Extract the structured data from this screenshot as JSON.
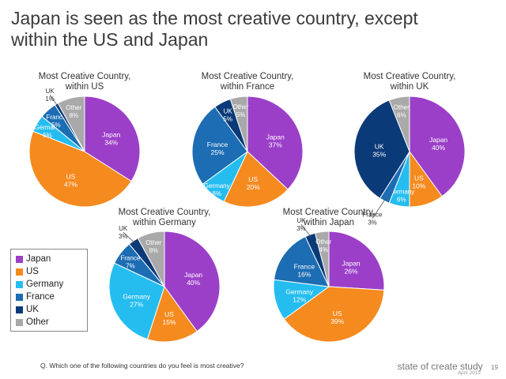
{
  "title": {
    "line1": "Japan is seen as the most creative country, except",
    "line2": "within the US and Japan"
  },
  "colors": {
    "Japan": "#9b3fc8",
    "US": "#f58a1f",
    "Germany": "#25bdf0",
    "France": "#1c6db3",
    "UK": "#0b3a78",
    "Other": "#a9a9a9"
  },
  "legend": {
    "items": [
      {
        "label": "Japan",
        "key": "Japan"
      },
      {
        "label": "US",
        "key": "US"
      },
      {
        "label": "Germany",
        "key": "Germany"
      },
      {
        "label": "France",
        "key": "France"
      },
      {
        "label": "UK",
        "key": "UK"
      },
      {
        "label": "Other",
        "key": "Other"
      }
    ]
  },
  "chart_data": [
    {
      "type": "pie",
      "title": [
        "Most Creative Country,",
        "within US"
      ],
      "slices": [
        {
          "label": "Japan",
          "value": 34
        },
        {
          "label": "US",
          "value": 47
        },
        {
          "label": "Germany",
          "value": 5
        },
        {
          "label": "France",
          "value": 5
        },
        {
          "label": "UK",
          "value": 1
        },
        {
          "label": "Other",
          "value": 8
        }
      ]
    },
    {
      "type": "pie",
      "title": [
        "Most Creative Country,",
        "within France"
      ],
      "slices": [
        {
          "label": "Japan",
          "value": 37
        },
        {
          "label": "US",
          "value": 20
        },
        {
          "label": "Germany",
          "value": 8
        },
        {
          "label": "France",
          "value": 25
        },
        {
          "label": "UK",
          "value": 5
        },
        {
          "label": "Other",
          "value": 5
        }
      ]
    },
    {
      "type": "pie",
      "title": [
        "Most Creative Country,",
        "within UK"
      ],
      "slices": [
        {
          "label": "Japan",
          "value": 40
        },
        {
          "label": "US",
          "value": 10
        },
        {
          "label": "Germany",
          "value": 6
        },
        {
          "label": "France",
          "value": 3
        },
        {
          "label": "UK",
          "value": 35
        },
        {
          "label": "Other",
          "value": 6
        }
      ]
    },
    {
      "type": "pie",
      "title": [
        "Most Creative Country,",
        "within Germany"
      ],
      "slices": [
        {
          "label": "Japan",
          "value": 40
        },
        {
          "label": "US",
          "value": 15
        },
        {
          "label": "Germany",
          "value": 27
        },
        {
          "label": "France",
          "value": 7
        },
        {
          "label": "UK",
          "value": 3
        },
        {
          "label": "Other",
          "value": 8
        }
      ]
    },
    {
      "type": "pie",
      "title": [
        "Most Creative Country,",
        "within Japan"
      ],
      "slices": [
        {
          "label": "Japan",
          "value": 26
        },
        {
          "label": "US",
          "value": 39
        },
        {
          "label": "Germany",
          "value": 12
        },
        {
          "label": "France",
          "value": 16
        },
        {
          "label": "UK",
          "value": 3
        },
        {
          "label": "Other",
          "value": 4
        }
      ]
    }
  ],
  "question": "Q. Which one of the following countries do you feel is most creative?",
  "footer": {
    "brand": "state of create study",
    "page": "19",
    "date": "April 2012"
  }
}
